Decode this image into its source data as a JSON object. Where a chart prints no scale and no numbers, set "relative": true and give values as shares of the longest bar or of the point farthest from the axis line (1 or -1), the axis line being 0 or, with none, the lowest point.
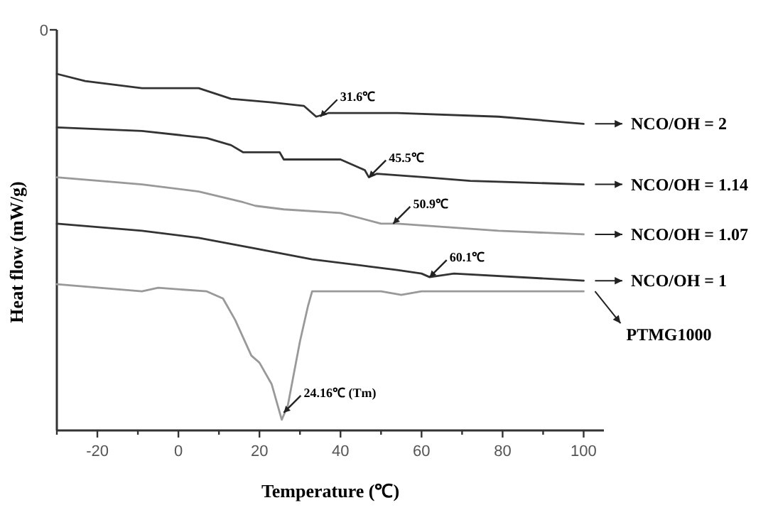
{
  "chart_data": {
    "type": "line",
    "relative": true,
    "xlabel": "Temperature (℃)",
    "ylabel": "Heat flow (mW/g)",
    "xlim": [
      -30,
      105
    ],
    "xticks": [
      {
        "value": -30,
        "label": null
      },
      -20,
      {
        "value": -10,
        "label": null
      },
      0,
      {
        "value": 10,
        "label": null
      },
      20,
      {
        "value": 30,
        "label": null
      },
      40,
      {
        "value": 50,
        "label": null
      },
      60,
      {
        "value": 70,
        "label": null
      },
      80,
      {
        "value": 90,
        "label": null
      },
      100
    ],
    "line_style": "solid",
    "series": [
      {
        "name": "NCO/OH = 2",
        "color": "#333333",
        "x": [
          -30,
          -23,
          -9,
          5,
          13,
          23,
          31,
          34,
          37,
          54,
          79,
          100
        ],
        "values": [
          1.0,
          0.98,
          0.96,
          0.96,
          0.93,
          0.92,
          0.91,
          0.88,
          0.89,
          0.89,
          0.88,
          0.86
        ]
      },
      {
        "name": "NCO/OH = 1.14",
        "color": "#333333",
        "x": [
          -30,
          -9,
          7,
          13,
          16,
          25,
          26,
          28,
          40,
          46,
          47,
          49,
          61,
          72,
          100
        ],
        "values": [
          0.85,
          0.84,
          0.82,
          0.8,
          0.78,
          0.78,
          0.76,
          0.76,
          0.76,
          0.73,
          0.71,
          0.72,
          0.71,
          0.7,
          0.69
        ]
      },
      {
        "name": "NCO/OH = 1.07",
        "color": "#999999",
        "x": [
          -30,
          -9,
          5,
          16,
          19,
          26,
          40,
          50,
          54,
          79,
          100
        ],
        "values": [
          0.71,
          0.69,
          0.67,
          0.64,
          0.63,
          0.62,
          0.61,
          0.58,
          0.58,
          0.56,
          0.55
        ]
      },
      {
        "name": "NCO/OH = 1",
        "color": "#333333",
        "x": [
          -30,
          -9,
          5,
          19,
          33,
          47,
          54,
          60,
          62,
          68,
          100
        ],
        "values": [
          0.58,
          0.56,
          0.54,
          0.51,
          0.48,
          0.46,
          0.45,
          0.44,
          0.43,
          0.44,
          0.42
        ]
      },
      {
        "name": "PTMG1000",
        "color": "#999999",
        "x": [
          -30,
          -9,
          -5,
          7,
          11,
          14,
          18,
          20,
          23,
          25.5,
          27,
          28,
          30,
          32,
          33,
          35,
          50,
          55,
          60,
          100
        ],
        "values": [
          0.41,
          0.39,
          0.4,
          0.39,
          0.37,
          0.31,
          0.21,
          0.19,
          0.13,
          0.03,
          0.07,
          0.13,
          0.25,
          0.35,
          0.39,
          0.39,
          0.39,
          0.38,
          0.39,
          0.39
        ]
      }
    ],
    "annotations": [
      "0",
      {
        "text": "31.6℃",
        "x": 35,
        "y": 0.88
      },
      {
        "text": "45.5℃",
        "x": 47,
        "y": 0.71
      },
      {
        "text": "50.9℃",
        "x": 53,
        "y": 0.58
      },
      {
        "text": "60.1℃",
        "x": 62,
        "y": 0.43
      },
      {
        "text": "24.16℃ (Tm)",
        "x": 26,
        "y": 0.05
      }
    ]
  }
}
